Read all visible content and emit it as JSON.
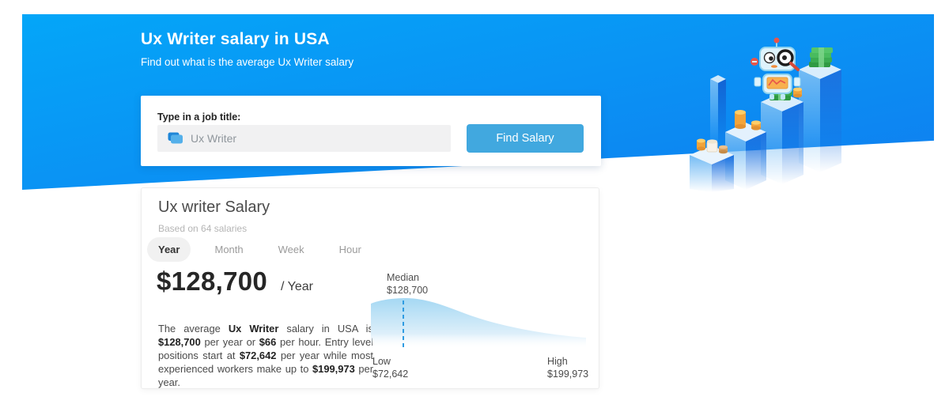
{
  "banner": {
    "title": "Ux Writer salary in USA",
    "subtitle": "Find out what is the average Ux Writer salary",
    "background_top": "#04a6f8",
    "background_bottom": "#0f7ef0"
  },
  "search": {
    "label": "Type in a job title:",
    "input_value": "Ux Writer",
    "input_icon": "briefcase-icon",
    "button_label": "Find Salary",
    "button_color": "#41a8df"
  },
  "salary_card": {
    "title": "Ux writer Salary",
    "based_on": "Based on 64 salaries",
    "tabs": [
      {
        "label": "Year",
        "active": true
      },
      {
        "label": "Month",
        "active": false
      },
      {
        "label": "Week",
        "active": false
      },
      {
        "label": "Hour",
        "active": false
      }
    ],
    "amount": "$128,700",
    "period": "/ Year",
    "description_segments": [
      {
        "text": "The average ",
        "bold": false
      },
      {
        "text": "Ux Writer",
        "bold": true
      },
      {
        "text": " salary in USA is ",
        "bold": false
      },
      {
        "text": "$128,700",
        "bold": true
      },
      {
        "text": " per year or ",
        "bold": false
      },
      {
        "text": "$66",
        "bold": true
      },
      {
        "text": " per hour. Entry level positions start at ",
        "bold": false
      },
      {
        "text": "$72,642",
        "bold": true
      },
      {
        "text": " per year while most experienced workers make up to ",
        "bold": false
      },
      {
        "text": "$199,973",
        "bold": true
      },
      {
        "text": " per year.",
        "bold": false
      }
    ]
  },
  "chart_data": {
    "type": "area",
    "title": "Ux Writer salary distribution",
    "currency": "USD",
    "period": "year",
    "low": {
      "label": "Low",
      "value": 72642,
      "display": "$72,642"
    },
    "median": {
      "label": "Median",
      "value": 128700,
      "display": "$128,700"
    },
    "high": {
      "label": "High",
      "value": 199973,
      "display": "$199,973"
    },
    "shape": "right-skewed density curve peaking at the median marker, fading to baseline at the high end",
    "marker": {
      "style": "dashed-vertical-line",
      "color": "#2f9ce2"
    },
    "fill_top": "#a5d8f3",
    "fill_bottom": "#ffffff",
    "grid": false,
    "legend": false
  },
  "illustration": {
    "name": "robot-analyzing-salary-bars",
    "elements": [
      "robot-with-magnifier",
      "ascending-isometric-bars",
      "coin-stacks",
      "money-bundles"
    ]
  }
}
